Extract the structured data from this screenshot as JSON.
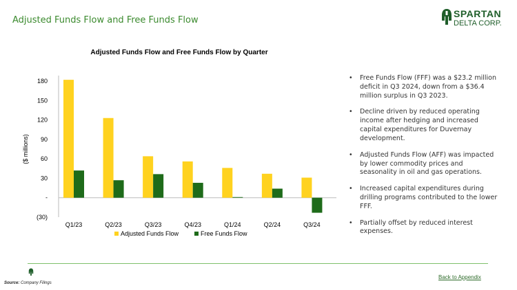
{
  "slide": {
    "title": "Adjusted Funds Flow and Free Funds Flow",
    "logo_line1": "SPARTAN",
    "logo_line2": "DELTA CORP.",
    "source_label": "Source:",
    "source_text": "Company Filings",
    "back_link": "Back to Appendix"
  },
  "bullets": [
    "Free Funds Flow (FFF) was a $23.2 million deficit in Q3 2024, down from a $36.4 million surplus in Q3 2023.",
    "Decline driven by reduced operating income after hedging and increased capital expenditures for Duvernay development.",
    "Adjusted Funds Flow (AFF) was impacted by lower commodity prices and seasonality in oil and gas operations.",
    "Increased capital expenditures during drilling programs contributed to the lower FFF.",
    "Partially offset by reduced interest expenses."
  ],
  "chart_data": {
    "type": "bar",
    "title": "Adjusted Funds Flow and Free Funds Flow by Quarter",
    "ylabel": "($ millions)",
    "xlabel": "",
    "categories": [
      "Q1/23",
      "Q2/23",
      "Q3/23",
      "Q4/23",
      "Q1/24",
      "Q2/24",
      "Q3/24"
    ],
    "series": [
      {
        "name": "Adjusted Funds Flow",
        "color": "#FFD21F",
        "values": [
          182,
          123,
          64,
          56,
          46,
          37,
          31
        ]
      },
      {
        "name": "Free Funds Flow",
        "color": "#1E6B1A",
        "values": [
          42,
          27,
          36.4,
          23,
          1,
          14,
          -23.2
        ]
      }
    ],
    "ylim": [
      -30,
      180
    ],
    "yticks": [
      180,
      150,
      120,
      90,
      60,
      30,
      0,
      -30
    ],
    "ytick_labels": [
      "180",
      "150",
      "120",
      "90",
      "60",
      "30",
      "-",
      "(30)"
    ],
    "grid": false,
    "legend": "bottom",
    "bullet_glyph": "•"
  }
}
